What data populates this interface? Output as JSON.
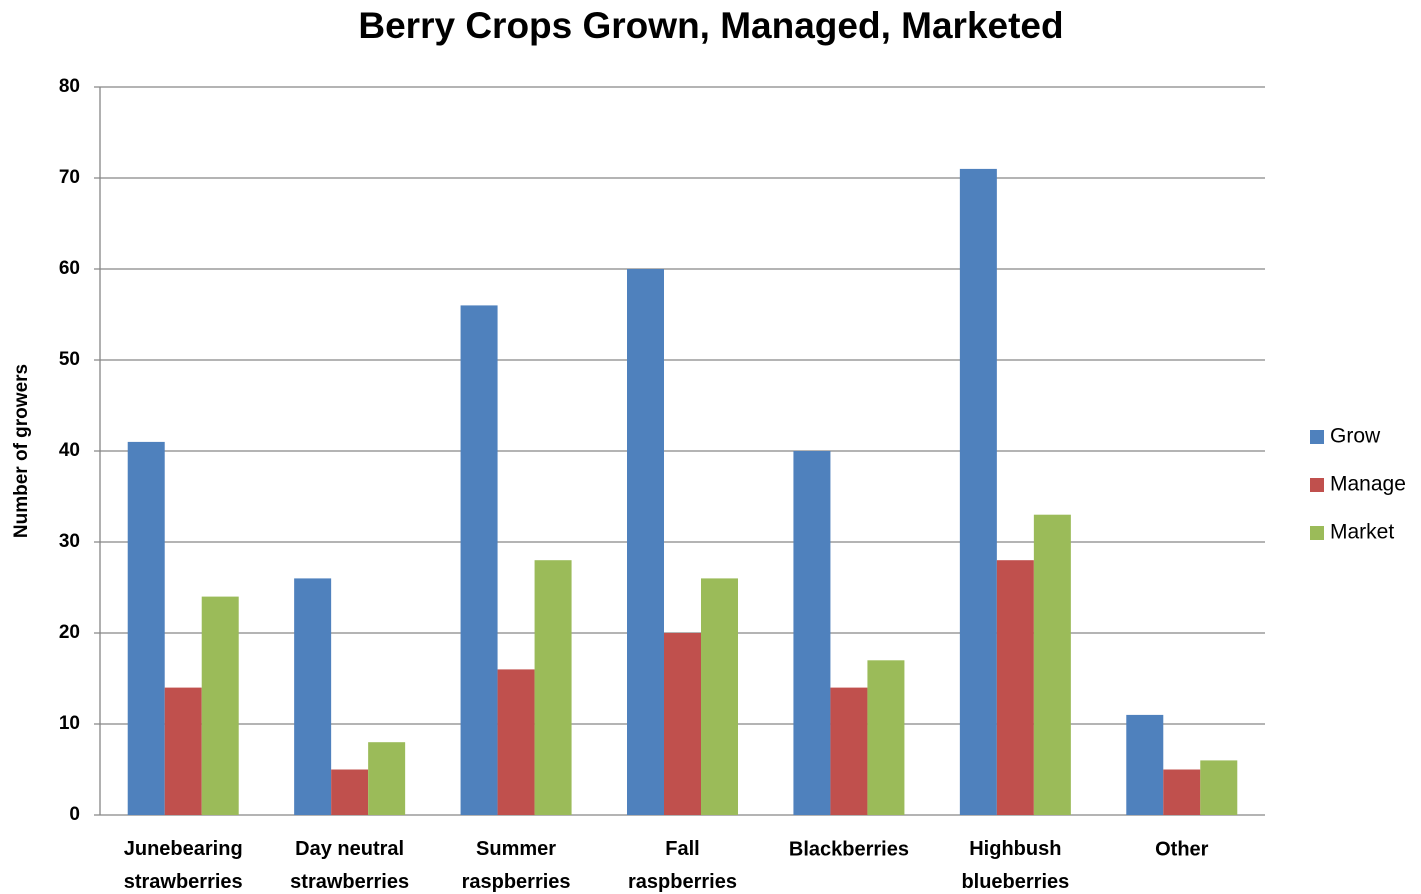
{
  "chart_data": {
    "type": "bar",
    "title": "Berry Crops Grown, Managed, Marketed",
    "ylabel": "Number of growers",
    "categories": [
      "Junebearing strawberries",
      "Day neutral strawberries",
      "Summer raspberries",
      "Fall raspberries",
      "Blackberries",
      "Highbush blueberries",
      "Other"
    ],
    "series": [
      {
        "name": "Grow",
        "color": "#4f81bd",
        "values": [
          41,
          26,
          56,
          60,
          40,
          71,
          11
        ]
      },
      {
        "name": "Manage",
        "color": "#c0504d",
        "values": [
          14,
          5,
          16,
          20,
          14,
          28,
          5
        ]
      },
      {
        "name": "Market",
        "color": "#9bbb59",
        "values": [
          24,
          8,
          28,
          26,
          17,
          33,
          6
        ]
      }
    ],
    "ylim": [
      0,
      80
    ],
    "yticks": [
      0,
      10,
      20,
      30,
      40,
      50,
      60,
      70,
      80
    ],
    "grid": true,
    "legend": "right"
  }
}
